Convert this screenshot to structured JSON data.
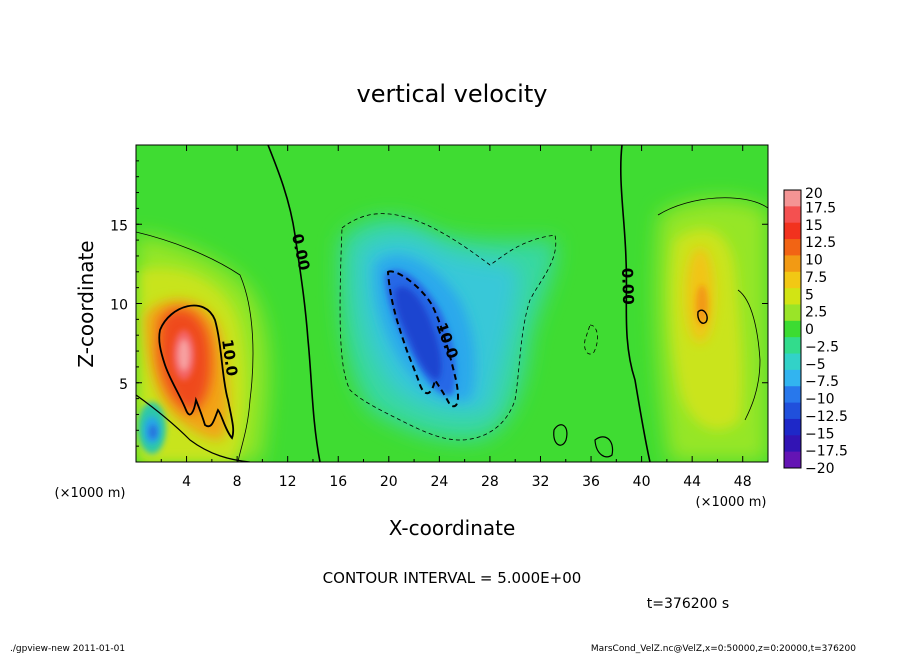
{
  "chart_data": {
    "type": "heatmap",
    "title": "vertical velocity",
    "xlabel": "X-coordinate",
    "ylabel": "Z-coordinate",
    "x_unit": "(×1000 m)",
    "y_unit": "(×1000 m)",
    "xlim": [
      0,
      50
    ],
    "ylim": [
      0,
      20
    ],
    "x_ticks": [
      "4",
      "8",
      "12",
      "16",
      "20",
      "24",
      "28",
      "32",
      "36",
      "40",
      "44",
      "48"
    ],
    "y_ticks": [
      "5",
      "10",
      "15"
    ],
    "colorbar": {
      "labels": [
        "20",
        "17.5",
        "15",
        "12.5",
        "10",
        "7.5",
        "5",
        "2.5",
        "0",
        "−2.5",
        "−5",
        "−7.5",
        "−10",
        "−12.5",
        "−15",
        "−17.5",
        "−20"
      ],
      "range": [
        -20,
        20
      ]
    },
    "features": [
      {
        "name": "updraft-left",
        "x": 4,
        "z": 7,
        "value": 18
      },
      {
        "name": "updraft-left-lobe",
        "x": 6.5,
        "z": 4,
        "value": 12
      },
      {
        "name": "downdraft-left",
        "x": 1.3,
        "z": 2,
        "value": -8
      },
      {
        "name": "downdraft-center",
        "x": 22.5,
        "z": 7.5,
        "value": -12
      },
      {
        "name": "downdraft-center-wide",
        "x": 24,
        "z": 10,
        "value": -6
      },
      {
        "name": "updraft-right",
        "x": 44.5,
        "z": 10,
        "value": 8
      }
    ],
    "contour_labels": [
      {
        "text": "10.0",
        "x": 7,
        "z": 7
      },
      {
        "text": "0.00",
        "x": 12.8,
        "z": 14
      },
      {
        "text": "10.0",
        "x": 24.3,
        "z": 7.8
      },
      {
        "text": "0.00",
        "x": 38.9,
        "z": 11
      }
    ],
    "grid": false,
    "legend": "colorbar-right"
  },
  "annotations": {
    "contour_interval": "CONTOUR INTERVAL = 5.000E+00",
    "time": "t=376200 s",
    "footer_left": "./gpview-new   2011-01-01",
    "footer_right": "MarsCond_VelZ.nc@VelZ,x=0:50000,z=0:20000,t=376200"
  }
}
